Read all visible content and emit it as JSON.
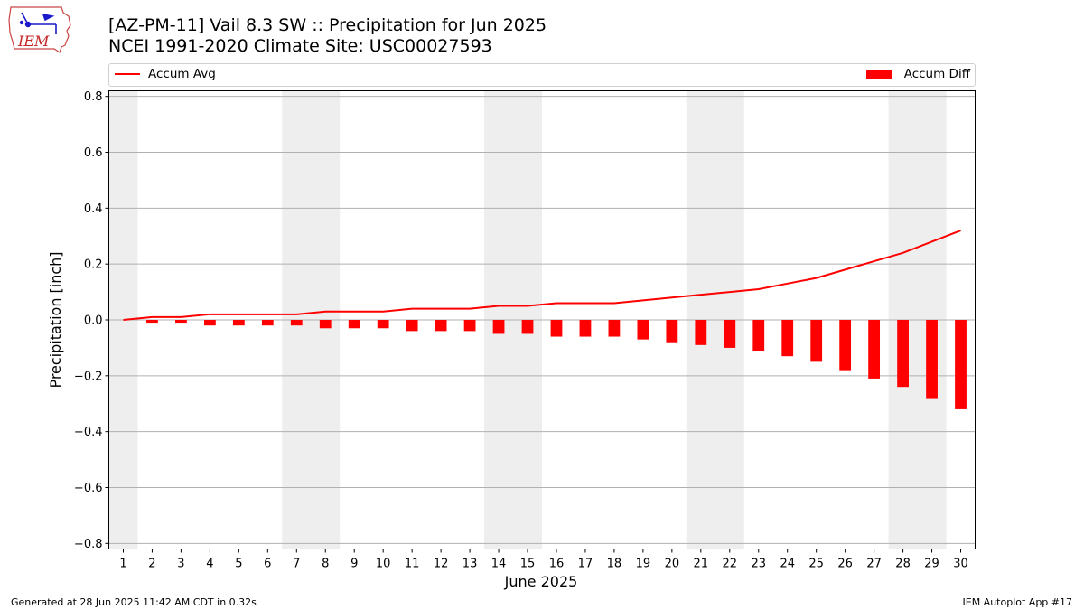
{
  "header": {
    "title_line1": "[AZ-PM-11] Vail 8.3 SW :: Precipitation for Jun 2025",
    "title_line2": "NCEI 1991-2020 Climate Site: USC00027593"
  },
  "logo": {
    "text": "IEM",
    "icon": "iowa-state-outline-logo"
  },
  "legend": {
    "line_label": "Accum Avg",
    "bar_label": "Accum Diff"
  },
  "footer": {
    "left": "Generated at 28 Jun 2025 11:42 AM CDT in 0.32s",
    "right": "IEM Autoplot App #17"
  },
  "colors": {
    "series": "#ff0000",
    "weekend_shade": "#eeeeee",
    "grid": "#b0b0b0"
  },
  "chart_data": {
    "type": "bar",
    "xlabel": "June 2025",
    "ylabel": "Precipitation [inch]",
    "ylim": [
      -0.82,
      0.82
    ],
    "yticks": [
      0.8,
      0.6,
      0.4,
      0.2,
      0.0,
      -0.2,
      -0.4,
      -0.6,
      -0.8
    ],
    "ytick_labels": [
      "0.8",
      "0.6",
      "0.4",
      "0.2",
      "0.0",
      "−0.2",
      "−0.4",
      "−0.6",
      "−0.8"
    ],
    "grid": "horizontal",
    "legend_placement": "top, outside plot",
    "x": [
      1,
      2,
      3,
      4,
      5,
      6,
      7,
      8,
      9,
      10,
      11,
      12,
      13,
      14,
      15,
      16,
      17,
      18,
      19,
      20,
      21,
      22,
      23,
      24,
      25,
      26,
      27,
      28,
      29,
      30
    ],
    "shaded_days": [
      [
        0.5,
        1.5
      ],
      [
        6.5,
        8.5
      ],
      [
        13.5,
        15.5
      ],
      [
        20.5,
        22.5
      ],
      [
        27.5,
        29.5
      ]
    ],
    "series": [
      {
        "name": "Accum Avg",
        "kind": "line",
        "values": [
          0.0,
          0.01,
          0.01,
          0.02,
          0.02,
          0.02,
          0.02,
          0.03,
          0.03,
          0.03,
          0.04,
          0.04,
          0.04,
          0.05,
          0.05,
          0.06,
          0.06,
          0.06,
          0.07,
          0.08,
          0.09,
          0.1,
          0.11,
          0.13,
          0.15,
          0.18,
          0.21,
          0.24,
          0.28,
          0.32
        ]
      },
      {
        "name": "Accum Diff",
        "kind": "bar",
        "values": [
          0.0,
          -0.01,
          -0.01,
          -0.02,
          -0.02,
          -0.02,
          -0.02,
          -0.03,
          -0.03,
          -0.03,
          -0.04,
          -0.04,
          -0.04,
          -0.05,
          -0.05,
          -0.06,
          -0.06,
          -0.06,
          -0.07,
          -0.08,
          -0.09,
          -0.1,
          -0.11,
          -0.13,
          -0.15,
          -0.18,
          -0.21,
          -0.24,
          -0.28,
          -0.32
        ]
      }
    ]
  }
}
